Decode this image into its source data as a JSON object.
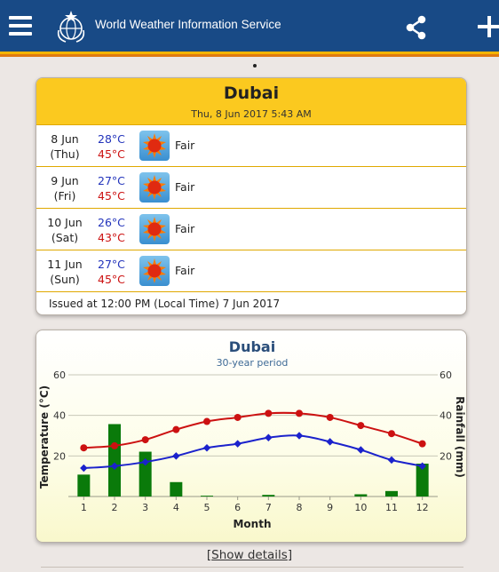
{
  "header": {
    "title": "World Weather Information Service",
    "menu_icon": "hamburger-menu-icon",
    "logo_icon": "wmo-emblem-icon",
    "share_icon": "share-icon",
    "add_icon": "plus-icon",
    "colors": {
      "bar": "#184a86",
      "stripe_top": "#f5b400",
      "stripe_bottom": "#e07a12"
    }
  },
  "forecast": {
    "city": "Dubai",
    "issued_datetime": "Thu, 8 Jun 2017 5:43 AM",
    "days": [
      {
        "date": "8 Jun",
        "weekday": "(Thu)",
        "min": "28°C",
        "max": "45°C",
        "condition": "Fair",
        "icon": "sun-icon"
      },
      {
        "date": "9 Jun",
        "weekday": "(Fri)",
        "min": "27°C",
        "max": "45°C",
        "condition": "Fair",
        "icon": "sun-icon"
      },
      {
        "date": "10 Jun",
        "weekday": "(Sat)",
        "min": "26°C",
        "max": "43°C",
        "condition": "Fair",
        "icon": "sun-icon"
      },
      {
        "date": "11 Jun",
        "weekday": "(Sun)",
        "min": "27°C",
        "max": "45°C",
        "condition": "Fair",
        "icon": "sun-icon"
      }
    ],
    "issued_note": "Issued at 12:00 PM (Local Time) 7 Jun 2017",
    "colors": {
      "header": "#fbc91f",
      "min_temp": "#2233bb",
      "max_temp": "#cc1111"
    }
  },
  "climate": {
    "city": "Dubai",
    "period": "30-year period"
  },
  "chart_data": {
    "type": "bar",
    "title": "Dubai",
    "subtitle": "30-year period",
    "xlabel": "Month",
    "ylabel_left": "Temperature (°C)",
    "ylabel_right": "Rainfall (mm)",
    "categories": [
      "1",
      "2",
      "3",
      "4",
      "5",
      "6",
      "7",
      "8",
      "9",
      "10",
      "11",
      "12"
    ],
    "ylim": [
      0,
      60
    ],
    "yticks": [
      "20",
      "40",
      "60"
    ],
    "grid": true,
    "series": [
      {
        "type": "bar",
        "values": [
          10.8,
          35.7,
          22.1,
          7.1,
          0.4,
          0.0,
          0.8,
          0.0,
          0.0,
          1.1,
          2.7,
          16.2
        ],
        "color": "#0a7a0a"
      },
      {
        "type": "line",
        "values": [
          24,
          25,
          28,
          33,
          37,
          39,
          41,
          41,
          39,
          35,
          31,
          26
        ],
        "color": "#cc1111"
      },
      {
        "type": "line",
        "values": [
          14,
          15,
          17,
          20,
          24,
          26,
          29,
          30,
          27,
          23,
          18,
          15
        ],
        "color": "#1b22cc"
      }
    ]
  },
  "footer": {
    "details_prefix": "[",
    "details_link": "Show details",
    "details_suffix": "]"
  }
}
